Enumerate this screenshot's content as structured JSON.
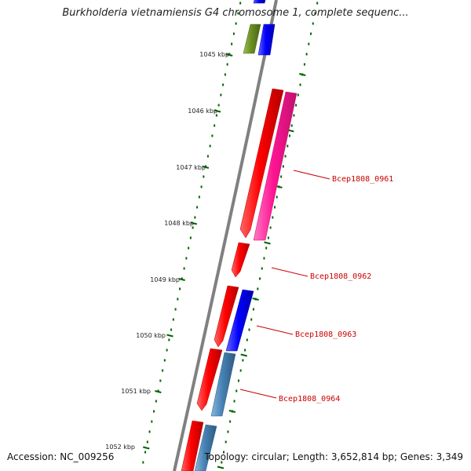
{
  "title": "Burkholderia vietnamiensis G4 chromosome 1, complete sequenc...",
  "footer": {
    "accession": "Accession: NC_009256",
    "summary": "Topology: circular; Length: 3,652,814 bp; Genes: 3,349"
  },
  "ruler": {
    "ticks": [
      "1045 kbp",
      "1046 kbp",
      "1047 kbp",
      "1048 kbp",
      "1049 kbp",
      "1050 kbp",
      "1051 kbp",
      "1052 kbp"
    ]
  },
  "genes": [
    {
      "label": "Bcep1808_0961"
    },
    {
      "label": "Bcep1808_0962"
    },
    {
      "label": "Bcep1808_0963"
    },
    {
      "label": "Bcep1808_0964"
    }
  ],
  "colors": {
    "red": "#ff0000",
    "pink": "#ff1493",
    "blue": "#0000ff",
    "steelblue": "#4682b4",
    "olive": "#6b8e23",
    "backbone": "#808080",
    "tick": "#006400",
    "label": "#cc0000"
  }
}
